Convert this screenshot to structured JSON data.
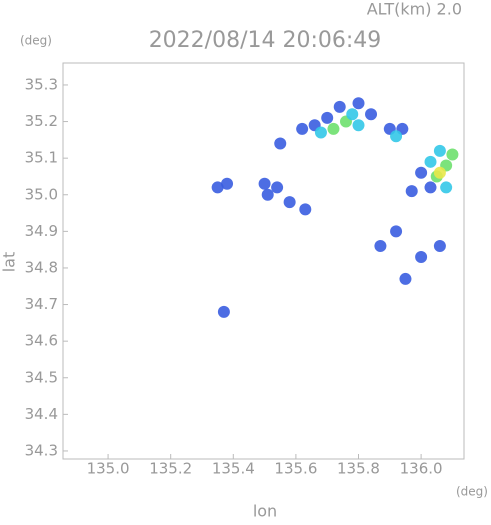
{
  "chart_data": {
    "type": "scatter",
    "title": "2022/08/14 20:06:49",
    "annotation": "ALT(km) 2.0",
    "x_unit": "(deg)",
    "y_unit": "(deg)",
    "xlabel": "lon",
    "ylabel": "lat",
    "xlim": [
      134.856,
      136.137
    ],
    "ylim": [
      34.278,
      35.36
    ],
    "xticks": [
      {
        "value": 135,
        "label": "135.0"
      },
      135.2,
      135.4,
      135.6,
      135.8,
      {
        "value": 136,
        "label": "136.0"
      }
    ],
    "yticks": [
      34.3,
      34.4,
      34.5,
      34.6,
      34.7,
      34.8,
      34.9,
      {
        "value": 35,
        "label": "35.0"
      },
      35.1,
      35.2,
      35.3
    ],
    "x": [
      135.62,
      135.66,
      135.7,
      135.74,
      135.8,
      135.84,
      135.68,
      135.72,
      135.76,
      135.8,
      135.78,
      135.9,
      135.94,
      135.92,
      135.55,
      136.0,
      136.03,
      136.06,
      136.08,
      136.05,
      136.06,
      136.08,
      136.03,
      136.1,
      135.35,
      135.38,
      135.5,
      135.54,
      135.51,
      135.58,
      135.63,
      135.92,
      135.87,
      136.06,
      136.0,
      135.95,
      135.37,
      135.97
    ],
    "y": [
      35.18,
      35.19,
      35.21,
      35.24,
      35.25,
      35.22,
      35.17,
      35.18,
      35.2,
      35.19,
      35.22,
      35.18,
      35.18,
      35.16,
      35.14,
      35.06,
      35.09,
      35.12,
      35.08,
      35.05,
      35.06,
      35.02,
      35.02,
      35.11,
      35.02,
      35.03,
      35.03,
      35.02,
      35.0,
      34.98,
      34.96,
      34.9,
      34.86,
      34.86,
      34.83,
      34.77,
      34.68,
      35.01
    ],
    "colors": [
      "#3a5de0",
      "#3a5de0",
      "#3a5de0",
      "#3a5de0",
      "#3a5de0",
      "#3a5de0",
      "#33c8e8",
      "#6ee06e",
      "#6ee06e",
      "#33c8e8",
      "#33c8e8",
      "#3a5de0",
      "#3a5de0",
      "#33c8e8",
      "#3a5de0",
      "#3a5de0",
      "#33c8e8",
      "#33c8e8",
      "#6ee06e",
      "#6ee06e",
      "#e8e84a",
      "#33c8e8",
      "#3a5de0",
      "#6ee06e",
      "#3a5de0",
      "#3a5de0",
      "#3a5de0",
      "#3a5de0",
      "#3a5de0",
      "#3a5de0",
      "#3a5de0",
      "#3a5de0",
      "#3a5de0",
      "#3a5de0",
      "#3a5de0",
      "#3a5de0",
      "#3a5de0",
      "#3a5de0"
    ]
  }
}
